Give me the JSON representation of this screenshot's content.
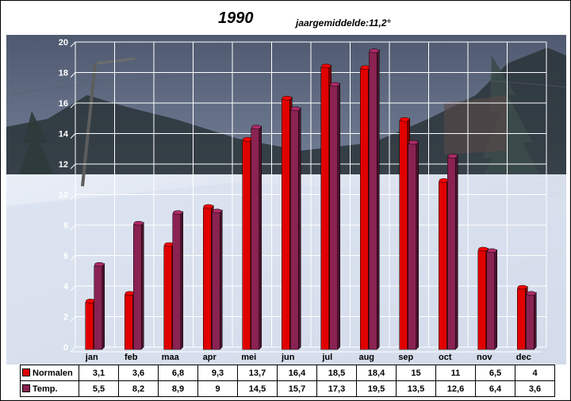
{
  "title": "1990",
  "subtitle": "jaargemiddelde:11,2°",
  "colors": {
    "normalen": "#e00000",
    "temp": "#8a2252"
  },
  "chart_data": {
    "type": "bar",
    "title": "1990",
    "subtitle": "jaargemiddelde:11,2°",
    "xlabel": "",
    "ylabel": "",
    "ylim": [
      0,
      20
    ],
    "yticks": [
      0,
      2,
      4,
      6,
      8,
      10,
      12,
      14,
      16,
      18,
      20
    ],
    "grid": true,
    "legend": "data-table-bottom",
    "categories": [
      "jan",
      "feb",
      "maa",
      "apr",
      "mei",
      "jun",
      "jul",
      "aug",
      "sep",
      "oct",
      "nov",
      "dec"
    ],
    "series": [
      {
        "name": "Normalen",
        "values": [
          3.1,
          3.6,
          6.8,
          9.3,
          13.7,
          16.4,
          18.5,
          18.4,
          15,
          11,
          6.5,
          4
        ],
        "labels": [
          "3,1",
          "3,6",
          "6,8",
          "9,3",
          "13,7",
          "16,4",
          "18,5",
          "18,4",
          "15",
          "11",
          "6,5",
          "4"
        ]
      },
      {
        "name": "Temp.",
        "values": [
          5.5,
          8.2,
          8.9,
          9,
          14.5,
          15.7,
          17.3,
          19.5,
          13.5,
          12.6,
          6.4,
          3.6
        ],
        "labels": [
          "5,5",
          "8,2",
          "8,9",
          "9",
          "14,5",
          "15,7",
          "17,3",
          "19,5",
          "13,5",
          "12,6",
          "6,4",
          "3,6"
        ]
      }
    ]
  }
}
